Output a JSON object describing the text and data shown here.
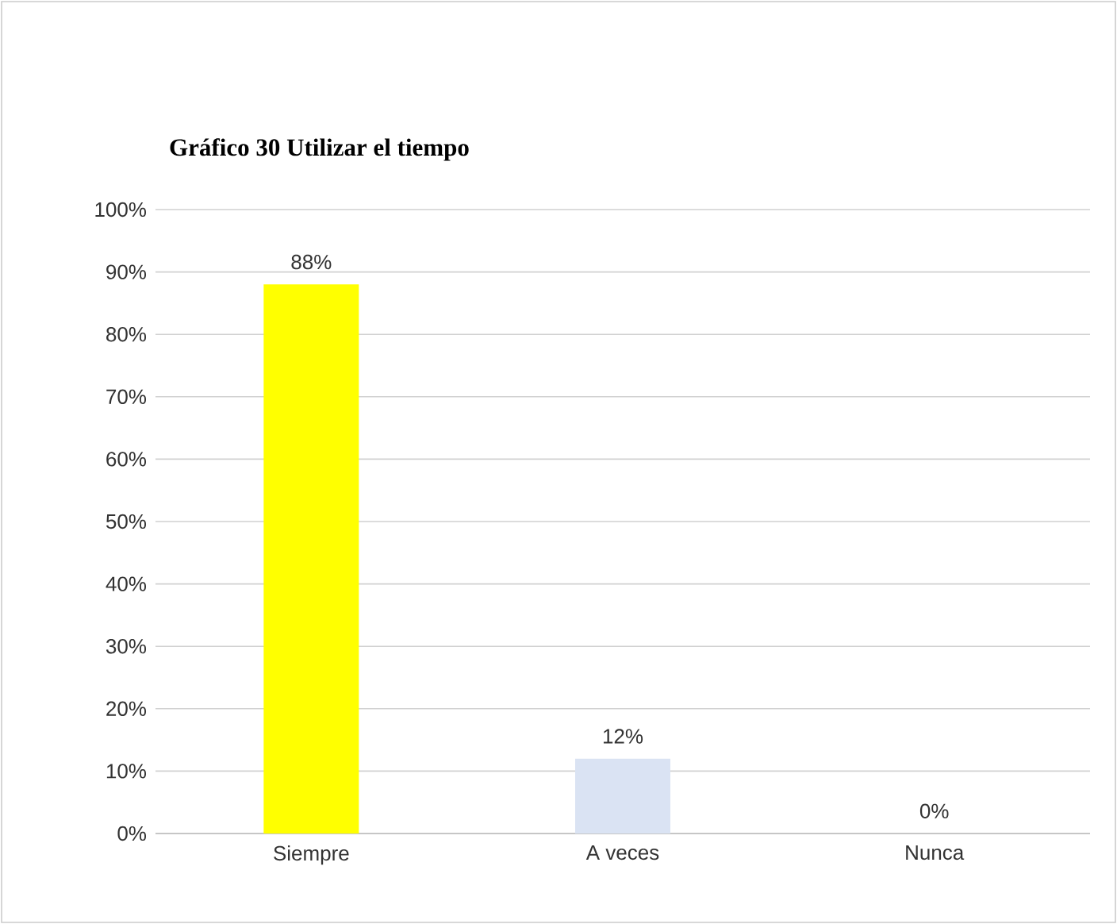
{
  "chart_data": {
    "type": "bar",
    "title": "Gráfico 30 Utilizar el tiempo",
    "categories": [
      "Siempre",
      "A veces",
      "Nunca"
    ],
    "values": [
      88,
      12,
      0
    ],
    "colors": [
      "#ffff00",
      "#dae3f3",
      "#dae3f3"
    ],
    "value_labels": [
      "88%",
      "12%",
      "0%"
    ],
    "ylim": [
      0,
      100
    ],
    "yticks": [
      {
        "value": 0,
        "label": "0%"
      },
      {
        "value": 10,
        "label": "10%"
      },
      {
        "value": 20,
        "label": "20%"
      },
      {
        "value": 30,
        "label": "30%"
      },
      {
        "value": 40,
        "label": "40%"
      },
      {
        "value": 50,
        "label": "50%"
      },
      {
        "value": 60,
        "label": "60%"
      },
      {
        "value": 70,
        "label": "70%"
      },
      {
        "value": 80,
        "label": "80%"
      },
      {
        "value": 90,
        "label": "90%"
      },
      {
        "value": 100,
        "label": "100%"
      }
    ],
    "grid": "y"
  }
}
